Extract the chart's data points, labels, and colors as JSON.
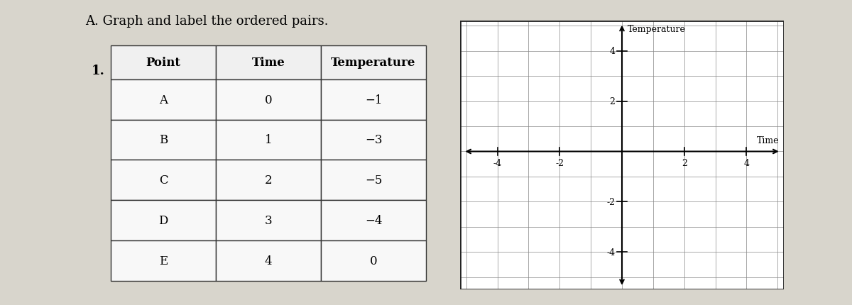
{
  "title": "A. Graph and label the ordered pairs.",
  "problem_number": "1.",
  "table": {
    "headers": [
      "Point",
      "Time",
      "Temperature"
    ],
    "rows": [
      [
        "A",
        "0",
        "−1"
      ],
      [
        "B",
        "1",
        "−3"
      ],
      [
        "C",
        "2",
        "−5"
      ],
      [
        "D",
        "3",
        "−4"
      ],
      [
        "E",
        "4",
        "0"
      ]
    ]
  },
  "xlim": [
    -5.2,
    5.2
  ],
  "ylim": [
    -5.5,
    5.2
  ],
  "xticks": [
    -4,
    -2,
    2,
    4
  ],
  "yticks": [
    -4,
    -2,
    2,
    4
  ],
  "xlabel": "Time",
  "ylabel": "Temperature",
  "bg_color": "#d8d5cc",
  "graph_bg": "#ffffff",
  "grid_color": "#888888",
  "border_color": "#222222"
}
